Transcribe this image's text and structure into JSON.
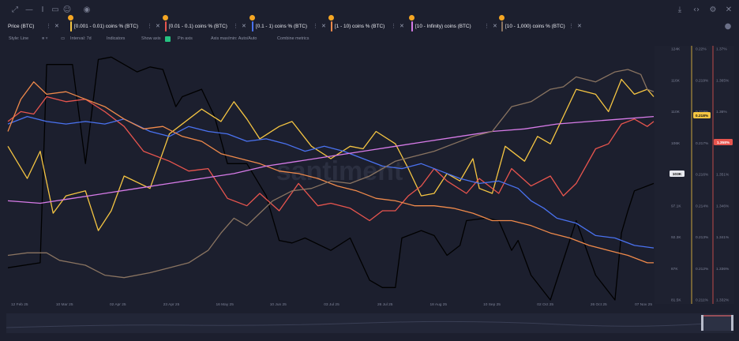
{
  "toolbar": {
    "icons": [
      "expand-icon",
      "drawing-line-icon",
      "text-cursor-icon",
      "note-icon",
      "emoji-icon",
      "eye-icon"
    ],
    "right_icons": [
      "download-icon",
      "embed-code-icon",
      "settings-gear-icon",
      "close-icon"
    ]
  },
  "metrics": [
    {
      "label": "Price (BTC)",
      "color": "#e8e9ef",
      "badge": false
    },
    {
      "label": "[0.001 - 0.01) coins % (BTC)",
      "color": "#f5c542",
      "badge": true
    },
    {
      "label": "[0.01 - 0.1) coins % (BTC)",
      "color": "#e8554e",
      "badge": true
    },
    {
      "label": "[0.1 - 1) coins % (BTC)",
      "color": "#4a72f0",
      "badge": true
    },
    {
      "label": "[1 - 10) coins % (BTC)",
      "color": "#f08a4b",
      "badge": true
    },
    {
      "label": "[10 - Infinity) coins (BTC)",
      "color": "#d77be8",
      "badge": true
    },
    {
      "label": "[10 - 1,000) coins % (BTC)",
      "color": "#8a7461",
      "badge": true
    }
  ],
  "settings": {
    "style": "Style: Line",
    "interval": "Interval: 7d",
    "indicators": "Indicators",
    "show_axis": "Show axis",
    "pin_axis": "Pin axis",
    "axis_max": "Axis max/min: Auto/Auto",
    "combine": "Combine metrics"
  },
  "watermark": "santiment",
  "chart_data": {
    "type": "line",
    "x_labels": [
      "12 Feb 25",
      "10 Mar 25",
      "02 Apr 25",
      "23 Apr 25",
      "16 May 25",
      "10 Jun 25",
      "03 Jul 25",
      "26 Jul 25",
      "18 Aug 25",
      "10 Sep 25",
      "02 Oct 25",
      "26 Oct 25",
      "07 Nov 25"
    ],
    "price_axis": {
      "ticks": [
        "124K",
        "116K",
        "110K",
        "106K",
        "103K",
        "97.1K",
        "92.3K",
        "87K",
        "81.5K"
      ],
      "current": "103K"
    },
    "axis_a": {
      "ticks": [
        "0.22%",
        "0.219%",
        "0.218%",
        "0.217%",
        "0.216%",
        "0.214%",
        "0.213%",
        "0.212%",
        "0.211%"
      ],
      "current": "0.218%"
    },
    "axis_b": {
      "ticks": [
        "1.37%",
        "1.365%",
        "1.36%",
        "1.355%",
        "1.351%",
        "1.346%",
        "1.341%",
        "1.336%",
        "1.332%"
      ],
      "current": "1.358%"
    },
    "series": [
      {
        "name": "Price (BTC)",
        "color": "#000000",
        "x": [
          0,
          5,
          6,
          10,
          12,
          14,
          16,
          20,
          22,
          24,
          26,
          27,
          30,
          32,
          34,
          37,
          40,
          42,
          44,
          46,
          50,
          53,
          56,
          58,
          60,
          61,
          64,
          66,
          68,
          70,
          71,
          74,
          76,
          78,
          79,
          81,
          84,
          88,
          91,
          94,
          95,
          96,
          97,
          98,
          100
        ],
        "y": [
          0.13,
          0.15,
          0.95,
          0.95,
          0.55,
          0.97,
          0.98,
          0.92,
          0.94,
          0.93,
          0.78,
          0.82,
          0.85,
          0.74,
          0.55,
          0.55,
          0.42,
          0.24,
          0.23,
          0.25,
          0.2,
          0.25,
          0.08,
          0.05,
          0.05,
          0.25,
          0.28,
          0.26,
          0.18,
          0.22,
          0.32,
          0.33,
          0.32,
          0.2,
          0.24,
          0.1,
          0.0,
          0.32,
          0.1,
          0.0,
          0.27,
          0.36,
          0.44,
          0.45,
          0.47
        ]
      },
      {
        "name": "[0.001 - 0.01) coins % (BTC)",
        "color": "#f5c542",
        "x": [
          0,
          3,
          5,
          7,
          9,
          12,
          14,
          16,
          18,
          22,
          25,
          28,
          30,
          33,
          35,
          37,
          39,
          42,
          44,
          47,
          50,
          53,
          55,
          57,
          60,
          62,
          64,
          66,
          68,
          70,
          72,
          73,
          75,
          77,
          80,
          82,
          84,
          86,
          88,
          91,
          93,
          95,
          97,
          99,
          100
        ],
        "y": [
          0.62,
          0.49,
          0.6,
          0.35,
          0.42,
          0.44,
          0.28,
          0.36,
          0.5,
          0.45,
          0.67,
          0.73,
          0.77,
          0.72,
          0.8,
          0.73,
          0.65,
          0.7,
          0.72,
          0.62,
          0.57,
          0.62,
          0.61,
          0.68,
          0.63,
          0.53,
          0.42,
          0.43,
          0.51,
          0.48,
          0.57,
          0.45,
          0.43,
          0.62,
          0.56,
          0.66,
          0.63,
          0.74,
          0.85,
          0.83,
          0.76,
          0.89,
          0.83,
          0.85,
          0.82
        ]
      },
      {
        "name": "[0.01 - 0.1) coins % (BTC)",
        "color": "#e8554e",
        "x": [
          0,
          2,
          4,
          6,
          9,
          12,
          15,
          18,
          21,
          25,
          28,
          31,
          34,
          37,
          39,
          42,
          45,
          48,
          50,
          53,
          56,
          58,
          60,
          62,
          64,
          66,
          68,
          71,
          73,
          76,
          78,
          81,
          84,
          86,
          88,
          91,
          93,
          95,
          97,
          99,
          100
        ],
        "y": [
          0.72,
          0.76,
          0.75,
          0.82,
          0.8,
          0.81,
          0.76,
          0.7,
          0.6,
          0.56,
          0.52,
          0.53,
          0.41,
          0.38,
          0.43,
          0.36,
          0.47,
          0.38,
          0.39,
          0.37,
          0.32,
          0.36,
          0.36,
          0.42,
          0.46,
          0.53,
          0.48,
          0.43,
          0.49,
          0.43,
          0.53,
          0.46,
          0.5,
          0.42,
          0.47,
          0.61,
          0.63,
          0.71,
          0.73,
          0.7,
          0.72
        ]
      },
      {
        "name": "[0.1 - 1) coins % (BTC)",
        "color": "#4a72f0",
        "x": [
          0,
          3,
          6,
          9,
          12,
          15,
          18,
          22,
          25,
          28,
          31,
          34,
          37,
          40,
          43,
          46,
          49,
          52,
          55,
          58,
          61,
          64,
          67,
          70,
          73,
          76,
          79,
          81,
          83,
          85,
          88,
          91,
          94,
          97,
          100
        ],
        "y": [
          0.71,
          0.74,
          0.72,
          0.71,
          0.72,
          0.71,
          0.73,
          0.68,
          0.66,
          0.7,
          0.68,
          0.67,
          0.64,
          0.65,
          0.63,
          0.6,
          0.62,
          0.6,
          0.57,
          0.54,
          0.53,
          0.55,
          0.52,
          0.49,
          0.47,
          0.48,
          0.45,
          0.4,
          0.37,
          0.33,
          0.31,
          0.26,
          0.25,
          0.22,
          0.21
        ]
      },
      {
        "name": "[1 - 10) coins % (BTC)",
        "color": "#f08a4b",
        "x": [
          0,
          2,
          4,
          6,
          9,
          12,
          15,
          18,
          21,
          24,
          27,
          30,
          33,
          36,
          39,
          42,
          45,
          48,
          51,
          54,
          57,
          60,
          63,
          66,
          69,
          72,
          75,
          78,
          81,
          84,
          87,
          90,
          93,
          96,
          99,
          100
        ],
        "y": [
          0.68,
          0.81,
          0.88,
          0.83,
          0.84,
          0.81,
          0.78,
          0.73,
          0.69,
          0.7,
          0.66,
          0.64,
          0.59,
          0.57,
          0.55,
          0.52,
          0.51,
          0.49,
          0.46,
          0.44,
          0.41,
          0.4,
          0.38,
          0.38,
          0.37,
          0.35,
          0.32,
          0.32,
          0.3,
          0.27,
          0.25,
          0.22,
          0.2,
          0.18,
          0.15,
          0.15
        ]
      },
      {
        "name": "[10 - Infinity) coins (BTC)",
        "color": "#d77be8",
        "x": [
          0,
          5,
          10,
          15,
          20,
          25,
          30,
          35,
          40,
          45,
          50,
          55,
          60,
          65,
          70,
          75,
          80,
          85,
          90,
          95,
          100
        ],
        "y": [
          0.4,
          0.39,
          0.41,
          0.43,
          0.45,
          0.47,
          0.49,
          0.51,
          0.54,
          0.56,
          0.58,
          0.6,
          0.62,
          0.64,
          0.66,
          0.68,
          0.69,
          0.71,
          0.72,
          0.73,
          0.74
        ]
      },
      {
        "name": "[10 - 1,000) coins % (BTC)",
        "color": "#8a7461",
        "x": [
          0,
          3,
          6,
          8,
          10,
          12,
          15,
          18,
          22,
          25,
          28,
          31,
          33,
          35,
          37,
          39,
          41,
          44,
          47,
          50,
          53,
          56,
          60,
          63,
          66,
          69,
          72,
          75,
          78,
          81,
          84,
          86,
          88,
          91,
          94,
          96,
          98,
          99,
          100
        ],
        "y": [
          0.18,
          0.19,
          0.19,
          0.16,
          0.15,
          0.14,
          0.1,
          0.09,
          0.11,
          0.13,
          0.15,
          0.2,
          0.27,
          0.33,
          0.3,
          0.35,
          0.4,
          0.44,
          0.45,
          0.48,
          0.47,
          0.5,
          0.56,
          0.58,
          0.6,
          0.63,
          0.66,
          0.68,
          0.78,
          0.8,
          0.85,
          0.86,
          0.9,
          0.88,
          0.92,
          0.93,
          0.91,
          0.85,
          0.84
        ]
      }
    ]
  }
}
